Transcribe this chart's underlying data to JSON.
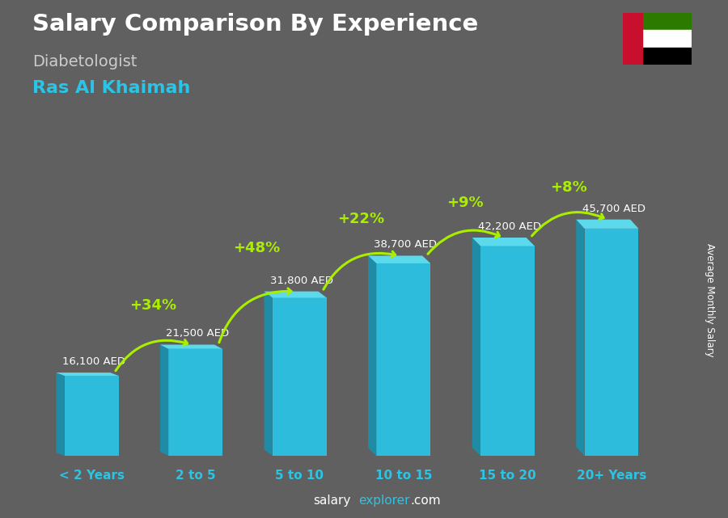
{
  "title": "Salary Comparison By Experience",
  "subtitle": "Diabetologist",
  "location": "Ras Al Khaimah",
  "categories": [
    "< 2 Years",
    "2 to 5",
    "5 to 10",
    "10 to 15",
    "15 to 20",
    "20+ Years"
  ],
  "values": [
    16100,
    21500,
    31800,
    38700,
    42200,
    45700
  ],
  "value_labels": [
    "16,100 AED",
    "21,500 AED",
    "31,800 AED",
    "38,700 AED",
    "42,200 AED",
    "45,700 AED"
  ],
  "pct_changes": [
    "+34%",
    "+48%",
    "+22%",
    "+9%",
    "+8%"
  ],
  "bar_face_color": "#29c5e6",
  "bar_left_color": "#1a8fab",
  "bar_top_color": "#5de0f5",
  "bg_color": "#606060",
  "title_color": "#ffffff",
  "subtitle_color": "#cccccc",
  "location_color": "#29c5e6",
  "label_color": "#ffffff",
  "axis_label_color": "#29c5e6",
  "pct_color": "#aaee00",
  "arrow_color": "#aaee00",
  "website_salary_color": "#ffffff",
  "website_explorer_color": "#29c5e6",
  "ylabel": "Average Monthly Salary",
  "flag_green": "#2d7a00",
  "flag_red": "#c8102e",
  "flag_white": "#ffffff",
  "flag_black": "#000000"
}
